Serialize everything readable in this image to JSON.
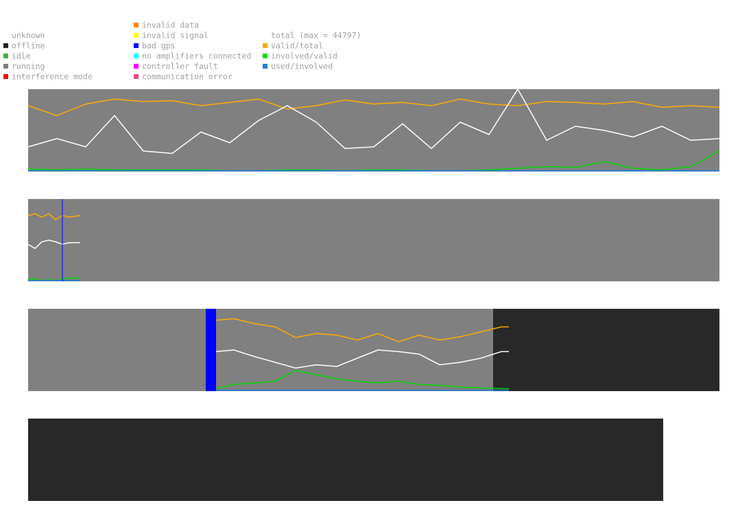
{
  "legend": {
    "columns": [
      [
        {
          "name": "unknown",
          "color": null
        },
        {
          "name": "offline",
          "color": "#222222"
        },
        {
          "name": "idle",
          "color": "#44aa44"
        },
        {
          "name": "running",
          "color": "#808080"
        },
        {
          "name": "interference mode",
          "color": "#ee0000"
        }
      ],
      [
        {
          "name": "invalid data",
          "color": "#ff8800"
        },
        {
          "name": "invalid signal",
          "color": "#ffff00"
        },
        {
          "name": "bad gps",
          "color": "#0000ff"
        },
        {
          "name": "no amplifiers connected",
          "color": "#00ffff"
        },
        {
          "name": "controller fault",
          "color": "#ff00ff"
        },
        {
          "name": "communication error",
          "color": "#ff4488"
        }
      ],
      [
        {
          "name": "total (max = 44797)",
          "color": null
        },
        {
          "name": "valid/total",
          "color": "#ffaa00"
        },
        {
          "name": "involved/valid",
          "color": "#00dd00"
        },
        {
          "name": "used/involved",
          "color": "#1a7fe0"
        }
      ]
    ]
  },
  "panels": [
    {
      "xlim": [
        0,
        1008
      ],
      "ylim": [
        0,
        100
      ],
      "segments": [
        {
          "start": 0,
          "end": 1008,
          "color": "#808080"
        }
      ],
      "markers": [],
      "x": [
        0,
        42,
        84,
        126,
        168,
        210,
        252,
        294,
        336,
        378,
        420,
        462,
        504,
        546,
        588,
        630,
        672,
        714,
        756,
        798,
        840,
        882,
        924,
        966,
        1008
      ],
      "series": [
        {
          "color": "#ffaa00",
          "values": [
            80,
            68,
            82,
            88,
            85,
            86,
            80,
            84,
            88,
            76,
            80,
            87,
            82,
            84,
            80,
            88,
            82,
            80,
            85,
            84,
            82,
            85,
            78,
            80,
            78
          ]
        },
        {
          "color": "#ffffff",
          "values": [
            30,
            40,
            30,
            68,
            25,
            22,
            48,
            35,
            62,
            80,
            60,
            28,
            30,
            58,
            28,
            60,
            45,
            100,
            38,
            55,
            50,
            42,
            55,
            38,
            40
          ]
        },
        {
          "color": "#00dd00",
          "values": [
            3,
            2,
            3,
            2,
            2,
            2,
            2,
            1,
            1,
            2,
            2,
            1,
            2,
            2,
            1,
            1,
            2,
            4,
            6,
            5,
            12,
            4,
            2,
            6,
            25
          ]
        },
        {
          "color": "#1a7fe0",
          "values": [
            1,
            1,
            1,
            1,
            1,
            1,
            1,
            1,
            1,
            1,
            1,
            1,
            1,
            1,
            1,
            1,
            1,
            1,
            1,
            1,
            1,
            1,
            1,
            1,
            1
          ]
        }
      ]
    },
    {
      "xlim": [
        0,
        1008
      ],
      "ylim": [
        0,
        100
      ],
      "segments": [
        {
          "start": 0,
          "end": 1008,
          "color": "#808080"
        }
      ],
      "markers": [
        {
          "x": 50,
          "color": "#0000ff"
        }
      ],
      "x": [
        0,
        10,
        20,
        30,
        40,
        50,
        60,
        76
      ],
      "series": [
        {
          "color": "#ffaa00",
          "values": [
            80,
            82,
            78,
            82,
            75,
            80,
            78,
            80
          ]
        },
        {
          "color": "#ffffff",
          "values": [
            45,
            40,
            48,
            50,
            48,
            45,
            47,
            47
          ]
        },
        {
          "color": "#00dd00",
          "values": [
            2,
            3,
            1,
            2,
            1,
            3,
            4,
            4
          ]
        },
        {
          "color": "#1a7fe0",
          "values": [
            1,
            1,
            1,
            1,
            1,
            1,
            1,
            1
          ]
        }
      ]
    },
    {
      "xlim": [
        0,
        1008
      ],
      "ylim": [
        0,
        100
      ],
      "segments": [
        {
          "start": 0,
          "end": 259,
          "color": "#808080"
        },
        {
          "start": 259,
          "end": 274,
          "color": "#0000ff"
        },
        {
          "start": 274,
          "end": 678,
          "color": "#808080"
        },
        {
          "start": 678,
          "end": 1008,
          "color": "#282828"
        }
      ],
      "markers": [],
      "x": [
        274,
        300,
        330,
        360,
        390,
        420,
        450,
        480,
        510,
        540,
        570,
        600,
        630,
        660,
        690,
        701
      ],
      "series": [
        {
          "color": "#ffaa00",
          "values": [
            86,
            88,
            82,
            78,
            65,
            70,
            68,
            62,
            70,
            60,
            68,
            62,
            66,
            72,
            78,
            78
          ]
        },
        {
          "color": "#ffffff",
          "values": [
            48,
            50,
            42,
            35,
            28,
            32,
            30,
            40,
            50,
            48,
            45,
            32,
            35,
            40,
            48,
            48
          ]
        },
        {
          "color": "#00dd00",
          "values": [
            3,
            8,
            10,
            12,
            25,
            20,
            15,
            12,
            10,
            12,
            8,
            7,
            5,
            4,
            3,
            3
          ]
        },
        {
          "color": "#1a7fe0",
          "values": [
            1,
            1,
            1,
            1,
            1,
            1,
            1,
            1,
            1,
            1,
            1,
            1,
            1,
            1,
            1,
            1
          ]
        }
      ]
    },
    {
      "xlim": [
        0,
        1008
      ],
      "ylim": [
        0,
        100
      ],
      "segments": [
        {
          "start": 0,
          "end": 926,
          "color": "#282828"
        }
      ],
      "markers": [],
      "x": [],
      "series": []
    }
  ]
}
